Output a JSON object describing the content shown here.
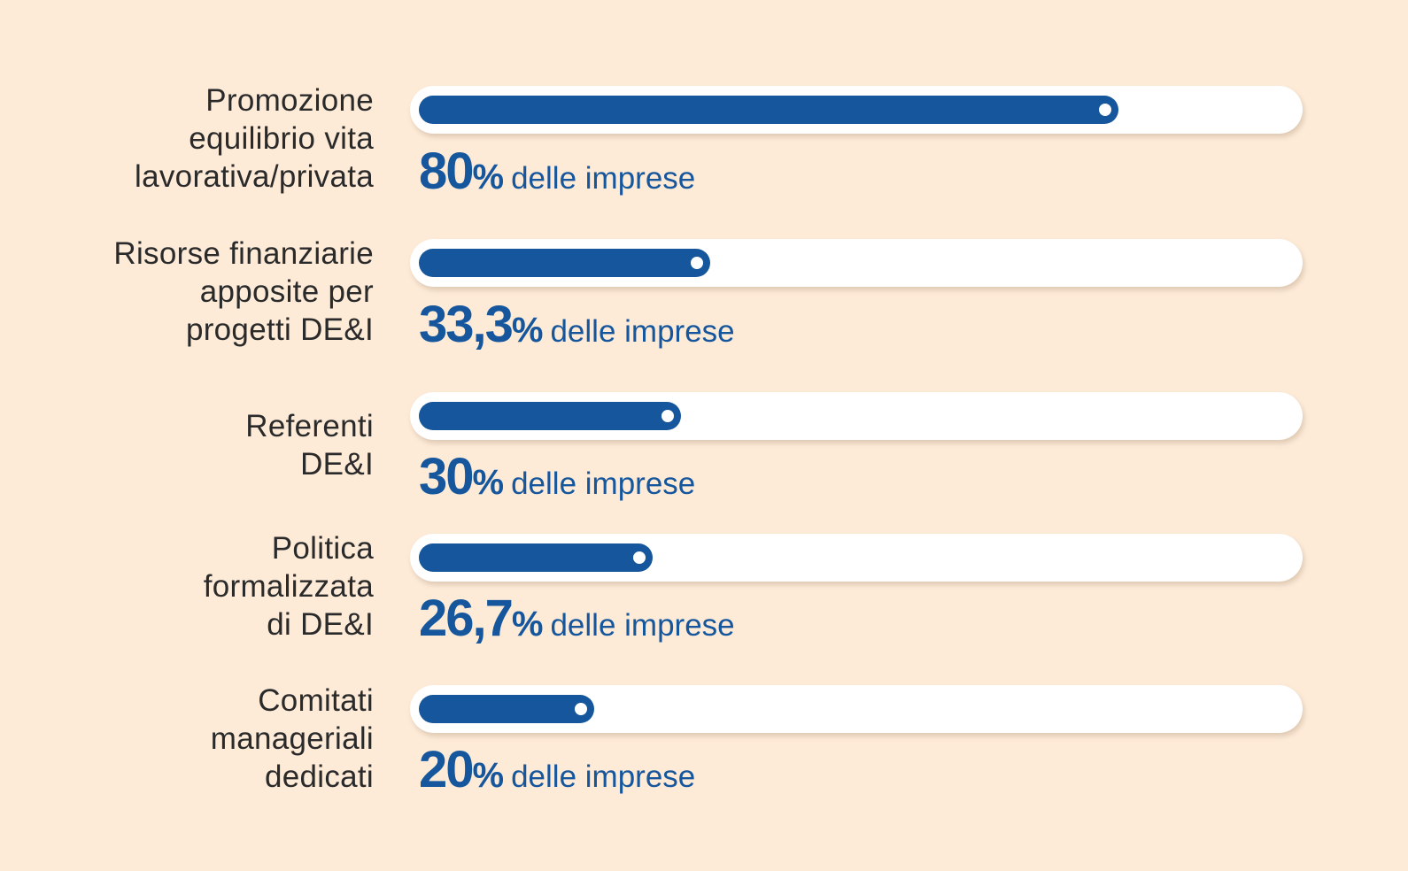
{
  "chart_data": {
    "type": "bar",
    "orientation": "horizontal",
    "categories": [
      "Promozione equilibrio vita lavorativa/privata",
      "Risorse finanziarie apposite per progetti DE&I",
      "Referenti DE&I",
      "Politica formalizzata di DE&I",
      "Comitati manageriali dedicati"
    ],
    "values": [
      80,
      33.3,
      30,
      26.7,
      20
    ],
    "xlim": [
      0,
      100
    ],
    "grid": false
  },
  "rows": [
    {
      "label_lines": [
        "Promozione",
        "equilibrio vita",
        "lavorativa/privata"
      ],
      "value_text": "80",
      "unit": "%",
      "suffix": "delle imprese"
    },
    {
      "label_lines": [
        "Risorse finanziarie",
        "apposite per",
        "progetti DE&I"
      ],
      "value_text": "33,3",
      "unit": "%",
      "suffix": "delle imprese"
    },
    {
      "label_lines": [
        "Referenti",
        "DE&I"
      ],
      "value_text": "30",
      "unit": "%",
      "suffix": "delle imprese"
    },
    {
      "label_lines": [
        "Politica",
        "formalizzata",
        "di DE&I"
      ],
      "value_text": "26,7",
      "unit": "%",
      "suffix": "delle imprese"
    },
    {
      "label_lines": [
        "Comitati",
        "manageriali",
        "dedicati"
      ],
      "value_text": "20",
      "unit": "%",
      "suffix": "delle imprese"
    }
  ],
  "colors": {
    "background": "#fdebd8",
    "bar_fill": "#16569c",
    "track": "#ffffff",
    "label_text": "#2a2a2a"
  }
}
